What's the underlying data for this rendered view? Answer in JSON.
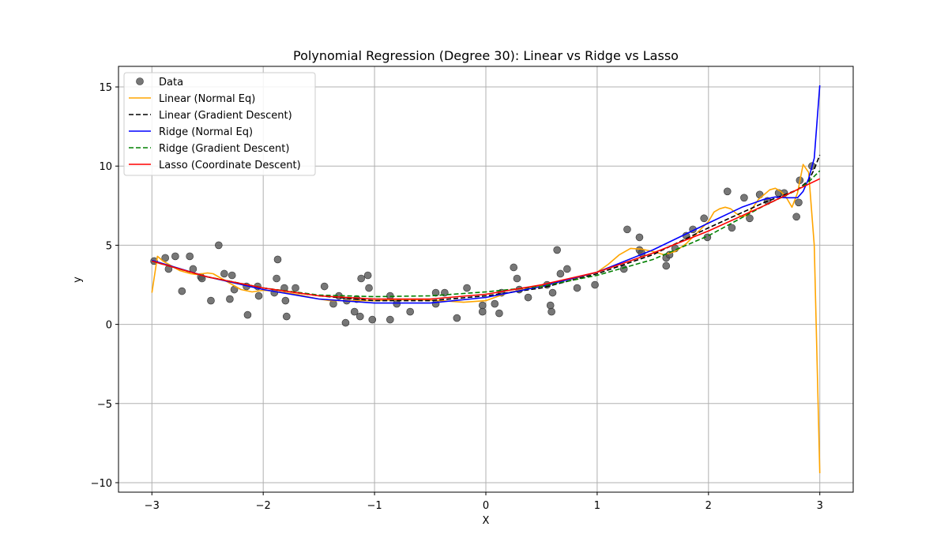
{
  "chart_data": {
    "type": "scatter",
    "title": "Polynomial Regression (Degree 30): Linear vs Ridge vs Lasso",
    "xlabel": "X",
    "ylabel": "y",
    "xlim": [
      -3.3,
      3.3
    ],
    "ylim": [
      -10.6,
      16.3
    ],
    "xticks": [
      -3,
      -2,
      -1,
      0,
      1,
      2,
      3
    ],
    "yticks": [
      -10,
      -5,
      0,
      5,
      10,
      15
    ],
    "xtick_labels": [
      "−3",
      "−2",
      "−1",
      "0",
      "1",
      "2",
      "3"
    ],
    "ytick_labels": [
      "−10",
      "−5",
      "0",
      "5",
      "10",
      "15"
    ],
    "grid": true,
    "legend_position": "top-left",
    "scatter": {
      "name": "Data",
      "color": "#555555",
      "x": [
        -2.98,
        -2.88,
        -2.85,
        -2.79,
        -2.73,
        -2.66,
        -2.63,
        -2.56,
        -2.55,
        -2.47,
        -2.4,
        -2.35,
        -2.3,
        -2.28,
        -2.26,
        -2.15,
        -2.14,
        -2.05,
        -2.04,
        -1.9,
        -1.88,
        -1.87,
        -1.81,
        -1.8,
        -1.79,
        -1.71,
        -1.45,
        -1.37,
        -1.32,
        -1.26,
        -1.25,
        -1.18,
        -1.16,
        -1.13,
        -1.12,
        -1.06,
        -1.05,
        -1.02,
        -0.86,
        -0.86,
        -0.8,
        -0.68,
        -0.45,
        -0.45,
        -0.37,
        -0.26,
        -0.17,
        -0.03,
        -0.03,
        0.08,
        0.12,
        0.14,
        0.25,
        0.28,
        0.3,
        0.38,
        0.55,
        0.58,
        0.59,
        0.6,
        0.64,
        0.67,
        0.73,
        0.82,
        0.98,
        1.24,
        1.27,
        1.38,
        1.38,
        1.4,
        1.62,
        1.62,
        1.65,
        1.7,
        1.8,
        1.86,
        1.96,
        1.99,
        2.17,
        2.21,
        2.32,
        2.37,
        2.46,
        2.53,
        2.63,
        2.68,
        2.79,
        2.81,
        2.82,
        2.93
      ],
      "y": [
        4.0,
        4.2,
        3.5,
        4.3,
        2.1,
        4.3,
        3.5,
        3.0,
        2.9,
        1.5,
        5.0,
        3.2,
        1.6,
        3.1,
        2.2,
        2.4,
        0.6,
        2.4,
        1.8,
        2.0,
        2.9,
        4.1,
        2.3,
        1.5,
        0.5,
        2.3,
        2.4,
        1.3,
        1.8,
        0.1,
        1.5,
        0.8,
        1.6,
        0.5,
        2.9,
        3.1,
        2.3,
        0.3,
        1.8,
        0.3,
        1.3,
        0.8,
        1.3,
        2.0,
        2.0,
        0.4,
        2.3,
        1.2,
        0.8,
        1.3,
        0.7,
        2.0,
        3.6,
        2.9,
        2.2,
        1.7,
        2.5,
        1.2,
        0.8,
        2.0,
        4.7,
        3.2,
        3.5,
        2.3,
        2.5,
        3.5,
        6.0,
        5.5,
        4.7,
        4.5,
        4.2,
        3.7,
        4.4,
        4.8,
        5.6,
        6.0,
        6.7,
        5.5,
        8.4,
        6.1,
        8.0,
        6.7,
        8.2,
        7.8,
        8.3,
        8.3,
        6.8,
        7.7,
        9.1,
        10.0
      ]
    },
    "series": [
      {
        "name": "Linear (Normal Eq)",
        "color": "#FFA500",
        "dash": "solid",
        "x": [
          -3.0,
          -2.95,
          -2.9,
          -2.85,
          -2.8,
          -2.75,
          -2.7,
          -2.65,
          -2.6,
          -2.55,
          -2.5,
          -2.45,
          -2.4,
          -2.35,
          -2.3,
          -2.2,
          -2.1,
          -2.0,
          -1.9,
          -1.8,
          -1.7,
          -1.6,
          -1.5,
          -1.4,
          -1.2,
          -1.0,
          -0.8,
          -0.6,
          -0.4,
          -0.2,
          0.0,
          0.2,
          0.4,
          0.6,
          0.8,
          1.0,
          1.1,
          1.2,
          1.3,
          1.4,
          1.5,
          1.6,
          1.7,
          1.8,
          1.9,
          2.0,
          2.05,
          2.1,
          2.15,
          2.2,
          2.25,
          2.3,
          2.35,
          2.4,
          2.45,
          2.5,
          2.55,
          2.6,
          2.65,
          2.7,
          2.75,
          2.8,
          2.85,
          2.9,
          2.95,
          3.0
        ],
        "y": [
          2.0,
          4.3,
          4.0,
          3.8,
          3.6,
          3.4,
          3.3,
          3.2,
          3.15,
          3.2,
          3.25,
          3.2,
          3.0,
          2.8,
          2.6,
          2.2,
          2.05,
          2.15,
          2.1,
          2.0,
          1.9,
          1.75,
          1.6,
          1.5,
          1.5,
          1.5,
          1.55,
          1.55,
          1.5,
          1.4,
          1.5,
          2.0,
          2.3,
          2.65,
          2.9,
          3.3,
          3.8,
          4.4,
          4.8,
          4.75,
          4.6,
          4.4,
          4.6,
          5.1,
          5.8,
          6.5,
          7.1,
          7.3,
          7.4,
          7.3,
          7.0,
          6.8,
          6.9,
          7.4,
          7.9,
          8.2,
          8.5,
          8.6,
          8.4,
          8.0,
          7.4,
          8.3,
          10.1,
          9.6,
          5.0,
          -9.4
        ]
      },
      {
        "name": "Linear (Gradient Descent)",
        "color": "#000000",
        "dash": "dashed",
        "x": [
          -3.0,
          -2.5,
          -2.0,
          -1.5,
          -1.0,
          -0.5,
          0.0,
          0.5,
          1.0,
          1.5,
          2.0,
          2.5,
          2.8,
          2.9,
          2.95,
          3.0
        ],
        "y": [
          4.0,
          3.0,
          2.3,
          1.8,
          1.5,
          1.5,
          1.8,
          2.3,
          3.2,
          4.4,
          6.1,
          7.7,
          8.5,
          9.1,
          9.8,
          10.7
        ]
      },
      {
        "name": "Ridge (Normal Eq)",
        "color": "#0000FF",
        "dash": "solid",
        "x": [
          -3.0,
          -2.5,
          -2.0,
          -1.5,
          -1.0,
          -0.5,
          0.0,
          0.5,
          1.0,
          1.5,
          2.0,
          2.3,
          2.5,
          2.6,
          2.7,
          2.8,
          2.85,
          2.9,
          2.95,
          3.0
        ],
        "y": [
          4.05,
          3.0,
          2.2,
          1.6,
          1.35,
          1.35,
          1.7,
          2.4,
          3.3,
          4.7,
          6.4,
          7.4,
          7.9,
          8.05,
          8.0,
          8.0,
          8.4,
          9.2,
          10.5,
          15.1
        ]
      },
      {
        "name": "Ridge (Gradient Descent)",
        "color": "#008000",
        "dash": "dashed",
        "x": [
          -3.0,
          -2.5,
          -2.0,
          -1.5,
          -1.0,
          -0.5,
          0.0,
          0.5,
          1.0,
          1.5,
          2.0,
          2.5,
          2.8,
          2.9,
          3.0
        ],
        "y": [
          4.0,
          3.0,
          2.3,
          1.85,
          1.75,
          1.8,
          2.05,
          2.4,
          3.1,
          4.1,
          5.6,
          7.5,
          8.5,
          9.0,
          9.7
        ]
      },
      {
        "name": "Lasso (Coordinate Descent)",
        "color": "#FF0000",
        "dash": "solid",
        "x": [
          -3.0,
          -2.5,
          -2.0,
          -1.5,
          -1.0,
          -0.5,
          0.0,
          0.5,
          1.0,
          1.5,
          2.0,
          2.5,
          3.0
        ],
        "y": [
          4.0,
          3.0,
          2.3,
          1.8,
          1.6,
          1.6,
          1.9,
          2.5,
          3.3,
          4.5,
          5.9,
          7.5,
          9.2
        ]
      }
    ]
  }
}
